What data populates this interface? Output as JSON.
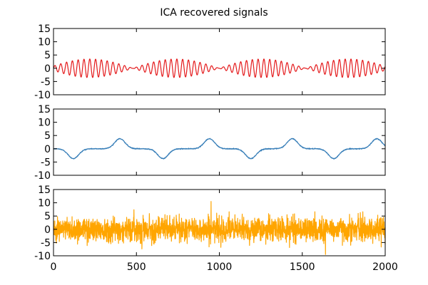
{
  "chart_data": [
    {
      "type": "line",
      "title": "ICA recovered signals",
      "series": [
        {
          "color": "#e41a1c",
          "shape": "amplitude-modulated sinusoid",
          "carrier_period": 35,
          "envelope_period": 520,
          "amplitude": 3.5
        }
      ],
      "xlim": [
        0,
        2000
      ],
      "ylim": [
        -10,
        15
      ],
      "yticks": [
        -10,
        -5,
        0,
        5,
        10,
        15
      ],
      "xticks": [
        0,
        500,
        1000,
        1500,
        2000
      ],
      "show_xtick_labels": false,
      "grid": false
    },
    {
      "type": "line",
      "series": [
        {
          "color": "#377eb8",
          "shape": "slow alternating smooth pulses",
          "pulse_centers": [
            120,
            400,
            660,
            940,
            1190,
            1440,
            1690,
            1950
          ],
          "pulse_peaks": [
            -3.7,
            3.8,
            -3.7,
            3.8,
            -3.7,
            3.8,
            -3.7,
            3.8
          ],
          "pulse_width": 45
        }
      ],
      "xlim": [
        0,
        2000
      ],
      "ylim": [
        -10,
        15
      ],
      "yticks": [
        -10,
        -5,
        0,
        5,
        10,
        15
      ],
      "xticks": [
        0,
        500,
        1000,
        1500,
        2000
      ],
      "show_xtick_labels": false,
      "grid": false
    },
    {
      "type": "line",
      "series": [
        {
          "color": "#ffa500",
          "shape": "noise",
          "noise_std": 2.3,
          "max": 10.5,
          "min": -9.5
        }
      ],
      "xlim": [
        0,
        2000
      ],
      "ylim": [
        -10,
        15
      ],
      "yticks": [
        -10,
        -5,
        0,
        5,
        10,
        15
      ],
      "xticks": [
        0,
        500,
        1000,
        1500,
        2000
      ],
      "xtick_labels": [
        "0",
        "500",
        "1000",
        "1500",
        "2000"
      ],
      "show_xtick_labels": true,
      "grid": false
    }
  ]
}
